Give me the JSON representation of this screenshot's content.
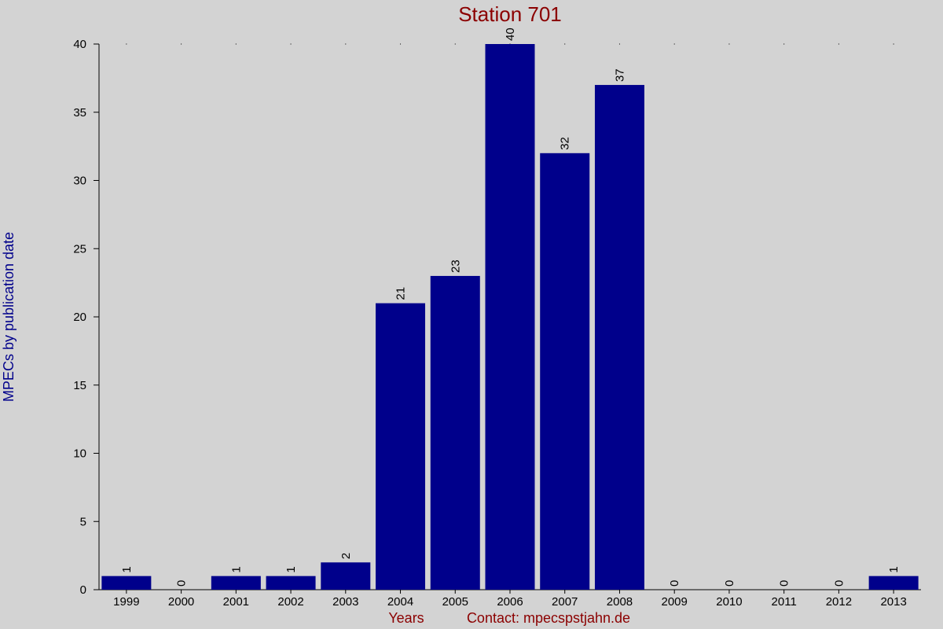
{
  "chart_data": {
    "type": "bar",
    "title": "Station 701",
    "xlabel": "Years",
    "ylabel": "MPECs by publication date",
    "footer_note": "Contact: mpecspstjahn.de",
    "categories": [
      "1999",
      "2000",
      "2001",
      "2002",
      "2003",
      "2004",
      "2005",
      "2006",
      "2007",
      "2008",
      "2009",
      "2010",
      "2011",
      "2012",
      "2013"
    ],
    "values": [
      1,
      0,
      1,
      1,
      2,
      21,
      23,
      40,
      32,
      37,
      0,
      0,
      0,
      0,
      1
    ],
    "ylim": [
      0,
      40
    ],
    "yticks": [
      0,
      5,
      10,
      15,
      20,
      25,
      30,
      35,
      40
    ],
    "grid": false,
    "colors": {
      "bar": "#00008b",
      "title": "#8b0000",
      "xlabel": "#8b0000",
      "ylabel": "#00008b",
      "background": "#d3d3d3"
    }
  }
}
